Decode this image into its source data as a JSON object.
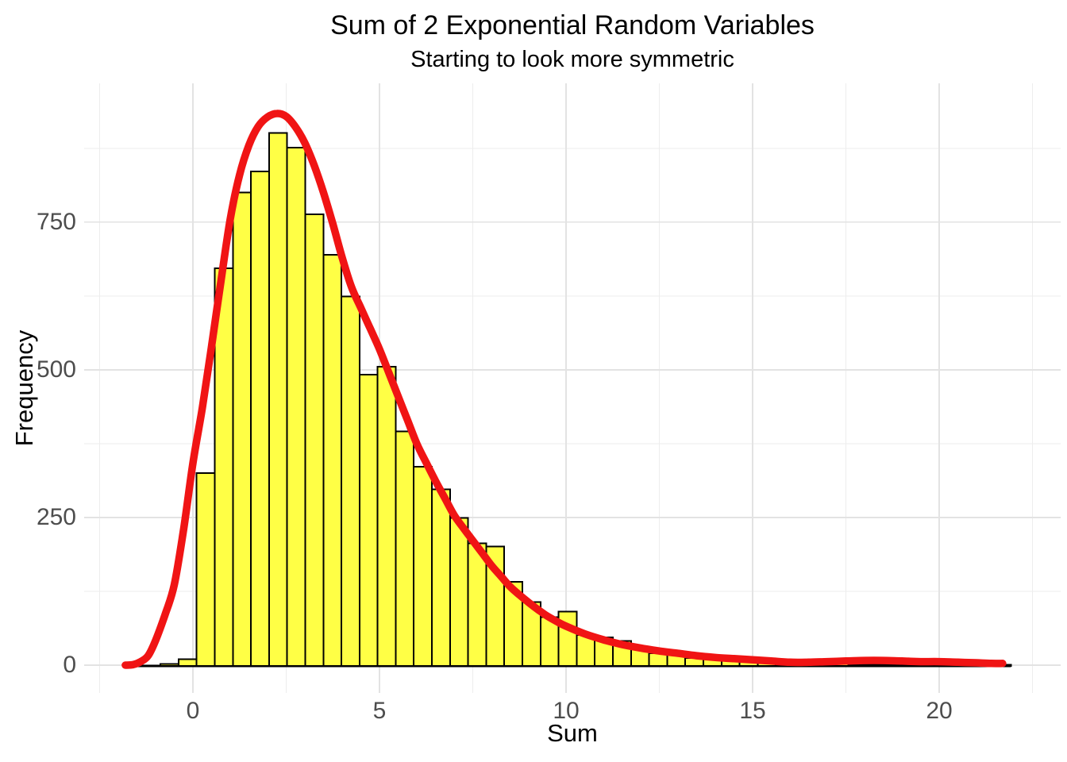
{
  "title": "Sum of 2 Exponential Random Variables",
  "subtitle": "Starting to look more symmetric",
  "x_axis": {
    "label": "Sum"
  },
  "y_axis": {
    "label": "Frequency"
  },
  "chart_data": {
    "type": "bar",
    "subtype": "histogram-with-density-overlay",
    "title": "Sum of 2 Exponential Random Variables",
    "subtitle": "Starting to look more symmetric",
    "xlabel": "Sum",
    "ylabel": "Frequency",
    "grid": true,
    "legend": false,
    "x_range": [
      -2.915,
      23.255
    ],
    "y_range": [
      -47,
      985
    ],
    "x_major_ticks": [
      0,
      5,
      10,
      15,
      20
    ],
    "x_minor_gridlines": [
      -2.5,
      2.5,
      7.5,
      12.5,
      17.5,
      22.5
    ],
    "y_major_ticks": [
      0,
      250,
      500,
      750
    ],
    "y_minor_gridlines": [
      125,
      375,
      625,
      875
    ],
    "bins": {
      "first_left_edge": -1.84,
      "bin_width": 0.485,
      "counts": [
        0,
        0,
        2,
        10,
        325,
        672,
        800,
        836,
        901,
        876,
        763,
        695,
        624,
        492,
        505,
        396,
        336,
        298,
        249,
        206,
        201,
        141,
        107,
        81,
        91,
        51,
        47,
        41,
        30,
        20,
        20,
        12,
        12,
        9,
        7,
        5,
        4,
        3,
        2,
        2,
        1,
        1,
        1,
        0,
        1,
        0,
        0,
        1,
        1
      ]
    },
    "density_curve": {
      "name": "density-overlay",
      "points": [
        [
          -1.81,
          0
        ],
        [
          -1.6,
          1
        ],
        [
          -1.4,
          6
        ],
        [
          -1.2,
          16
        ],
        [
          -1.0,
          42
        ],
        [
          -0.75,
          85
        ],
        [
          -0.5,
          136
        ],
        [
          -0.25,
          230
        ],
        [
          0,
          342
        ],
        [
          0.25,
          435
        ],
        [
          0.5,
          540
        ],
        [
          0.75,
          650
        ],
        [
          1.0,
          755
        ],
        [
          1.25,
          830
        ],
        [
          1.5,
          880
        ],
        [
          1.75,
          912
        ],
        [
          2.0,
          928
        ],
        [
          2.25,
          934
        ],
        [
          2.5,
          929
        ],
        [
          2.75,
          911
        ],
        [
          3.0,
          884
        ],
        [
          3.25,
          846
        ],
        [
          3.5,
          800
        ],
        [
          3.75,
          747
        ],
        [
          4.0,
          690
        ],
        [
          4.25,
          640
        ],
        [
          4.5,
          605
        ],
        [
          4.75,
          570
        ],
        [
          5.0,
          535
        ],
        [
          5.25,
          495
        ],
        [
          5.5,
          455
        ],
        [
          5.75,
          415
        ],
        [
          6.0,
          375
        ],
        [
          6.25,
          343
        ],
        [
          6.5,
          312
        ],
        [
          6.75,
          283
        ],
        [
          7.0,
          254
        ],
        [
          7.25,
          232
        ],
        [
          7.5,
          211
        ],
        [
          7.75,
          190
        ],
        [
          8.0,
          169
        ],
        [
          8.25,
          151
        ],
        [
          8.5,
          133
        ],
        [
          8.75,
          119
        ],
        [
          9.0,
          106
        ],
        [
          9.25,
          94
        ],
        [
          9.5,
          83
        ],
        [
          9.75,
          74
        ],
        [
          10.0,
          66
        ],
        [
          10.5,
          53
        ],
        [
          11.0,
          43
        ],
        [
          11.5,
          35
        ],
        [
          12.0,
          29
        ],
        [
          12.5,
          24
        ],
        [
          13.0,
          20
        ],
        [
          13.5,
          16
        ],
        [
          14.0,
          13
        ],
        [
          14.5,
          11
        ],
        [
          15.0,
          9
        ],
        [
          15.5,
          7
        ],
        [
          16.0,
          5
        ],
        [
          16.5,
          5
        ],
        [
          17.0,
          6
        ],
        [
          17.5,
          7
        ],
        [
          18.0,
          8
        ],
        [
          18.5,
          8
        ],
        [
          19.0,
          7
        ],
        [
          19.5,
          6
        ],
        [
          20.0,
          6
        ],
        [
          20.5,
          5
        ],
        [
          21.0,
          4
        ],
        [
          21.4,
          3
        ],
        [
          21.7,
          3
        ]
      ]
    },
    "baseline_extent": [
      -1.81,
      21.93
    ],
    "colors": {
      "bar_fill": "#FFFF45",
      "bar_stroke": "#000000",
      "curve": "#F01414",
      "grid_major": "#E3E3E3",
      "grid_minor": "#EDEDED",
      "tick_text": "#4D4D4D",
      "title_text": "#000000",
      "background": "#FFFFFF"
    }
  }
}
